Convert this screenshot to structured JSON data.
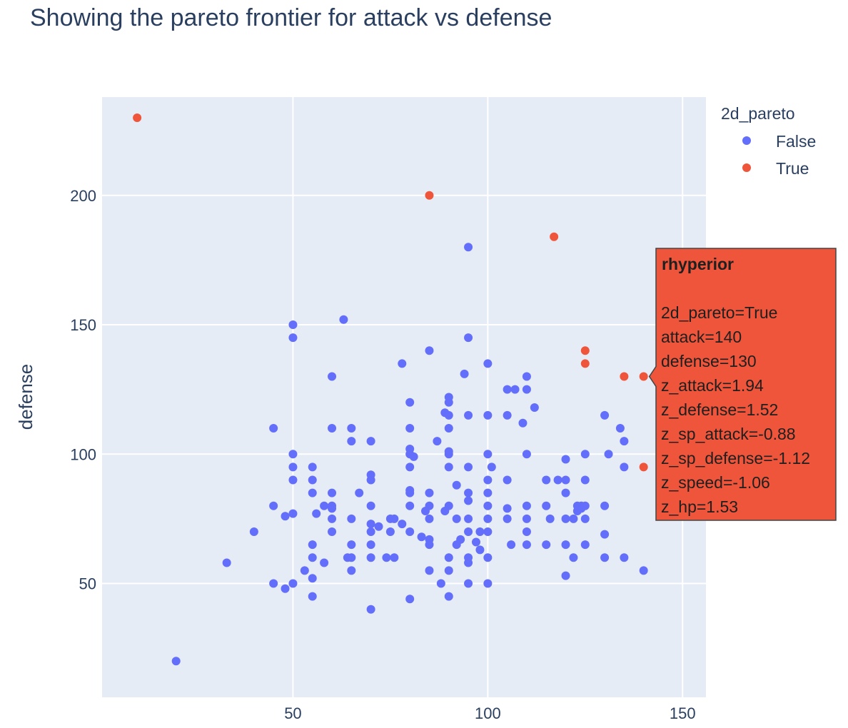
{
  "chart_data": {
    "type": "scatter",
    "title": "Showing the pareto frontier for attack vs defense",
    "xlabel": "",
    "ylabel": "defense",
    "xlim": [
      1,
      156
    ],
    "ylim": [
      6,
      238
    ],
    "x_ticks": [
      50,
      100,
      150
    ],
    "y_ticks": [
      50,
      100,
      150,
      200
    ],
    "grid": true,
    "legend": {
      "title": "2d_pareto",
      "placement": "top-right"
    },
    "colors": {
      "False": "#636efa",
      "True": "#ef553b",
      "plot_bg": "#e5ecf6"
    },
    "series": [
      {
        "name": "False",
        "points": [
          [
            20,
            20
          ],
          [
            33,
            58
          ],
          [
            40,
            70
          ],
          [
            45,
            50
          ],
          [
            45,
            80
          ],
          [
            45,
            110
          ],
          [
            48,
            48
          ],
          [
            48,
            76
          ],
          [
            50,
            50
          ],
          [
            50,
            77
          ],
          [
            50,
            90
          ],
          [
            50,
            95
          ],
          [
            50,
            100
          ],
          [
            50,
            145
          ],
          [
            50,
            150
          ],
          [
            53,
            55
          ],
          [
            55,
            45
          ],
          [
            55,
            52
          ],
          [
            55,
            60
          ],
          [
            55,
            65
          ],
          [
            55,
            85
          ],
          [
            55,
            90
          ],
          [
            55,
            95
          ],
          [
            56,
            77
          ],
          [
            58,
            58
          ],
          [
            58,
            80
          ],
          [
            60,
            70
          ],
          [
            60,
            75
          ],
          [
            60,
            79
          ],
          [
            60,
            80
          ],
          [
            60,
            85
          ],
          [
            60,
            110
          ],
          [
            60,
            130
          ],
          [
            63,
            152
          ],
          [
            64,
            60
          ],
          [
            65,
            55
          ],
          [
            65,
            60
          ],
          [
            65,
            65
          ],
          [
            65,
            75
          ],
          [
            65,
            105
          ],
          [
            65,
            110
          ],
          [
            67,
            85
          ],
          [
            70,
            40
          ],
          [
            70,
            60
          ],
          [
            70,
            65
          ],
          [
            70,
            70
          ],
          [
            70,
            73
          ],
          [
            70,
            80
          ],
          [
            70,
            90
          ],
          [
            70,
            92
          ],
          [
            70,
            105
          ],
          [
            72,
            72
          ],
          [
            74,
            60
          ],
          [
            75,
            70
          ],
          [
            75,
            75
          ],
          [
            76,
            60
          ],
          [
            76,
            75
          ],
          [
            78,
            73
          ],
          [
            78,
            135
          ],
          [
            80,
            44
          ],
          [
            80,
            70
          ],
          [
            80,
            80
          ],
          [
            80,
            85
          ],
          [
            80,
            86
          ],
          [
            80,
            95
          ],
          [
            80,
            100
          ],
          [
            80,
            102
          ],
          [
            80,
            110
          ],
          [
            80,
            120
          ],
          [
            81,
            99
          ],
          [
            83,
            68
          ],
          [
            84,
            78
          ],
          [
            85,
            55
          ],
          [
            85,
            65
          ],
          [
            85,
            67
          ],
          [
            85,
            75
          ],
          [
            85,
            80
          ],
          [
            85,
            85
          ],
          [
            85,
            140
          ],
          [
            87,
            105
          ],
          [
            88,
            50
          ],
          [
            89,
            116
          ],
          [
            89,
            78
          ],
          [
            90,
            45
          ],
          [
            90,
            55
          ],
          [
            90,
            60
          ],
          [
            90,
            80
          ],
          [
            90,
            95
          ],
          [
            90,
            100
          ],
          [
            90,
            101
          ],
          [
            90,
            110
          ],
          [
            90,
            115
          ],
          [
            90,
            120
          ],
          [
            90,
            122
          ],
          [
            92,
            88
          ],
          [
            92,
            65
          ],
          [
            92,
            75
          ],
          [
            93,
            67
          ],
          [
            94,
            131
          ],
          [
            95,
            50
          ],
          [
            95,
            58
          ],
          [
            95,
            60
          ],
          [
            95,
            70
          ],
          [
            95,
            75
          ],
          [
            95,
            82
          ],
          [
            95,
            85
          ],
          [
            95,
            95
          ],
          [
            95,
            115
          ],
          [
            95,
            145
          ],
          [
            95,
            180
          ],
          [
            97,
            66
          ],
          [
            98,
            63
          ],
          [
            98,
            70
          ],
          [
            100,
            50
          ],
          [
            100,
            60
          ],
          [
            100,
            70
          ],
          [
            100,
            75
          ],
          [
            100,
            80
          ],
          [
            100,
            85
          ],
          [
            100,
            90
          ],
          [
            100,
            100
          ],
          [
            100,
            115
          ],
          [
            100,
            135
          ],
          [
            101,
            95
          ],
          [
            105,
            75
          ],
          [
            105,
            79
          ],
          [
            105,
            90
          ],
          [
            105,
            115
          ],
          [
            105,
            125
          ],
          [
            106,
            65
          ],
          [
            107,
            125
          ],
          [
            109,
            112
          ],
          [
            110,
            65
          ],
          [
            110,
            70
          ],
          [
            110,
            75
          ],
          [
            110,
            80
          ],
          [
            110,
            100
          ],
          [
            110,
            125
          ],
          [
            110,
            130
          ],
          [
            112,
            118
          ],
          [
            115,
            65
          ],
          [
            115,
            80
          ],
          [
            115,
            90
          ],
          [
            116,
            75
          ],
          [
            118,
            90
          ],
          [
            120,
            53
          ],
          [
            120,
            65
          ],
          [
            120,
            75
          ],
          [
            120,
            85
          ],
          [
            120,
            90
          ],
          [
            120,
            98
          ],
          [
            122,
            60
          ],
          [
            122,
            75
          ],
          [
            123,
            78
          ],
          [
            123,
            80
          ],
          [
            124,
            80
          ],
          [
            124,
            79
          ],
          [
            125,
            65
          ],
          [
            125,
            75
          ],
          [
            125,
            80
          ],
          [
            125,
            90
          ],
          [
            125,
            100
          ],
          [
            130,
            60
          ],
          [
            130,
            69
          ],
          [
            130,
            80
          ],
          [
            130,
            115
          ],
          [
            131,
            100
          ],
          [
            134,
            110
          ],
          [
            135,
            60
          ],
          [
            135,
            95
          ],
          [
            135,
            105
          ],
          [
            140,
            55
          ]
        ]
      },
      {
        "name": "True",
        "points": [
          [
            10,
            230
          ],
          [
            85,
            200
          ],
          [
            117,
            184
          ],
          [
            125,
            140
          ],
          [
            125,
            135
          ],
          [
            135,
            130
          ],
          [
            140,
            130
          ],
          [
            140,
            95
          ]
        ]
      }
    ],
    "hover": {
      "title": "rhyperior",
      "lines": [
        "2d_pareto=True",
        "attack=140",
        "defense=130",
        "z_attack=1.94",
        "z_defense=1.52",
        "z_sp_attack=-0.88",
        "z_sp_defense=-1.12",
        "z_speed=-1.06",
        "z_hp=1.53"
      ],
      "anchor_point": [
        140,
        130
      ]
    }
  }
}
